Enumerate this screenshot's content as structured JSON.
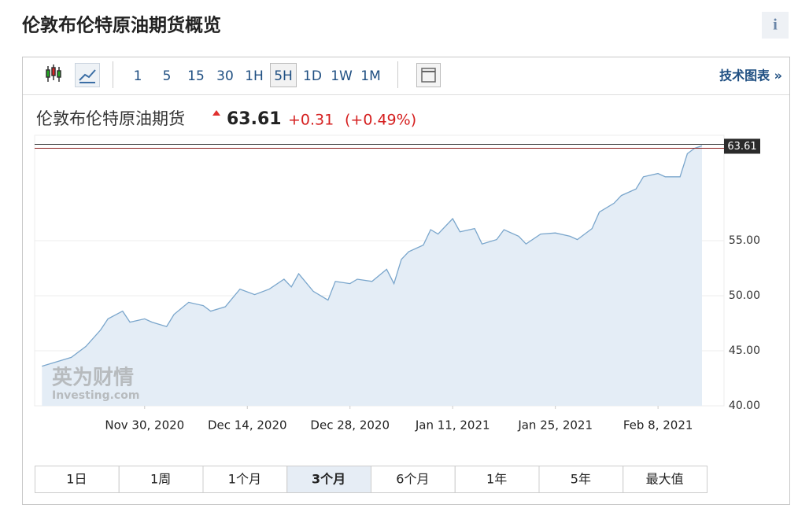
{
  "header": {
    "title": "伦敦布伦特原油期货概览",
    "info": "i"
  },
  "toolbar": {
    "intervals": [
      "1",
      "5",
      "15",
      "30",
      "1H",
      "5H",
      "1D",
      "1W",
      "1M"
    ],
    "selected": 5,
    "link": "技术图表 »"
  },
  "quote": {
    "name": "伦敦布伦特原油期货",
    "price": "63.61",
    "change": "+0.31",
    "change_pct": "(+0.49%)"
  },
  "chart_data": {
    "type": "area",
    "x": [
      "2020-11-16",
      "2020-11-18",
      "2020-11-20",
      "2020-11-22",
      "2020-11-24",
      "2020-11-25",
      "2020-11-27",
      "2020-11-28",
      "2020-11-30",
      "2020-12-01",
      "2020-12-03",
      "2020-12-04",
      "2020-12-06",
      "2020-12-08",
      "2020-12-09",
      "2020-12-11",
      "2020-12-13",
      "2020-12-15",
      "2020-12-17",
      "2020-12-19",
      "2020-12-20",
      "2020-12-21",
      "2020-12-23",
      "2020-12-25",
      "2020-12-26",
      "2020-12-28",
      "2020-12-29",
      "2020-12-31",
      "2021-01-02",
      "2021-01-03",
      "2021-01-04",
      "2021-01-05",
      "2021-01-07",
      "2021-01-08",
      "2021-01-09",
      "2021-01-11",
      "2021-01-12",
      "2021-01-14",
      "2021-01-15",
      "2021-01-17",
      "2021-01-18",
      "2021-01-20",
      "2021-01-21",
      "2021-01-23",
      "2021-01-25",
      "2021-01-27",
      "2021-01-28",
      "2021-01-30",
      "2021-01-31",
      "2021-02-02",
      "2021-02-03",
      "2021-02-05",
      "2021-02-06",
      "2021-02-08",
      "2021-02-09",
      "2021-02-11",
      "2021-02-12",
      "2021-02-13",
      "2021-02-14"
    ],
    "values": [
      43.6,
      44.0,
      44.4,
      45.4,
      46.9,
      47.9,
      48.6,
      47.6,
      47.9,
      47.6,
      47.2,
      48.3,
      49.4,
      49.1,
      48.6,
      49.0,
      50.6,
      50.1,
      50.6,
      51.5,
      50.8,
      52.0,
      50.4,
      49.6,
      51.3,
      51.1,
      51.5,
      51.3,
      52.4,
      51.1,
      53.3,
      54.0,
      54.6,
      56.0,
      55.6,
      57.0,
      55.8,
      56.1,
      54.7,
      55.1,
      56.0,
      55.4,
      54.7,
      55.6,
      55.7,
      55.4,
      55.1,
      56.1,
      57.6,
      58.4,
      59.1,
      59.7,
      60.8,
      61.1,
      60.8,
      60.8,
      62.9,
      63.4,
      63.61
    ],
    "color": "#7aa6cc",
    "fill": "#e4edf6",
    "price_line": 63.61,
    "xlim": [
      "2020-11-15",
      "2021-02-17"
    ],
    "xticks": [
      {
        "value": "2020-11-30",
        "label": "Nov 30, 2020"
      },
      {
        "value": "2020-12-14",
        "label": "Dec 14, 2020"
      },
      {
        "value": "2020-12-28",
        "label": "Dec 28, 2020"
      },
      {
        "value": "2021-01-11",
        "label": "Jan 11, 2021"
      },
      {
        "value": "2021-01-25",
        "label": "Jan 25, 2021"
      },
      {
        "value": "2021-02-08",
        "label": "Feb 8, 2021"
      }
    ],
    "ylim": [
      40,
      64.57
    ],
    "yticks": [
      {
        "value": 40,
        "label": "40.00"
      },
      {
        "value": 45,
        "label": "45.00"
      },
      {
        "value": 50,
        "label": "50.00"
      },
      {
        "value": 55,
        "label": "55.00"
      }
    ],
    "grid": true,
    "watermark": [
      "英为财情",
      "Investing.com"
    ]
  },
  "ranges": {
    "buttons": [
      "1日",
      "1周",
      "1个月",
      "3个月",
      "6个月",
      "1年",
      "5年",
      "最大值"
    ],
    "selected": 3
  }
}
